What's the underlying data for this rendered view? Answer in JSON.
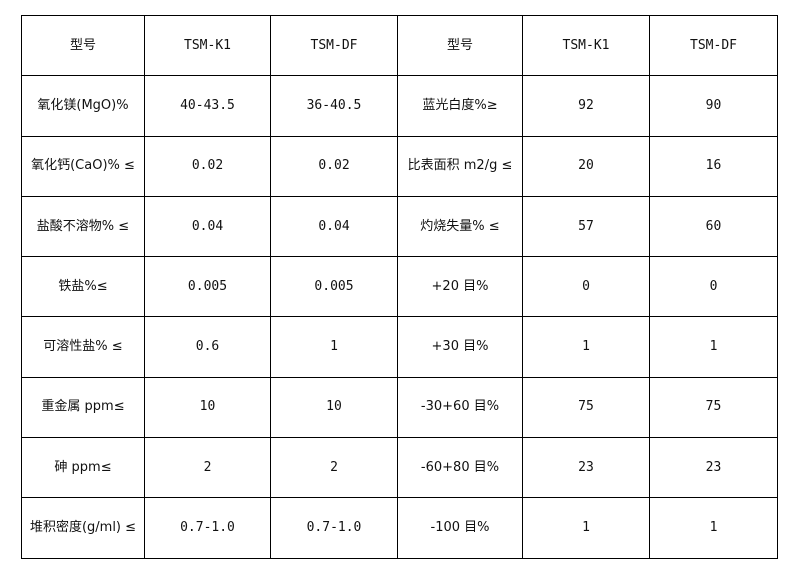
{
  "table": {
    "header": [
      "型号",
      "TSM-K1",
      "TSM-DF",
      "型号",
      "TSM-K1",
      "TSM-DF"
    ],
    "rows": [
      [
        "氧化镁(MgO)%",
        "40-43.5",
        "36-40.5",
        "蓝光白度%≥",
        "92",
        "90"
      ],
      [
        "氧化钙(CaO)% ≤",
        "0.02",
        "0.02",
        "比表面积 m2/g ≤",
        "20",
        "16"
      ],
      [
        "盐酸不溶物% ≤",
        "0.04",
        "0.04",
        "灼烧失量% ≤",
        "57",
        "60"
      ],
      [
        "铁盐%≤",
        "0.005",
        "0.005",
        "+20 目%",
        "0",
        "0"
      ],
      [
        "可溶性盐% ≤",
        "0.6",
        "1",
        "+30 目%",
        "1",
        "1"
      ],
      [
        "重金属 ppm≤",
        "10",
        "10",
        "-30+60 目%",
        "75",
        "75"
      ],
      [
        "砷 ppm≤",
        "2",
        "2",
        "-60+80 目%",
        "23",
        "23"
      ],
      [
        "堆积密度(g/ml) ≤",
        "0.7-1.0",
        "0.7-1.0",
        "-100 目%",
        "1",
        "1"
      ]
    ]
  }
}
